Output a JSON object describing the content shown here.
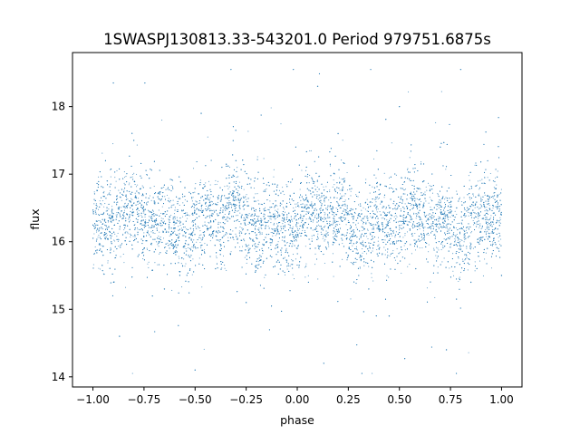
{
  "chart_data": {
    "type": "scatter",
    "title": "1SWASPJ130813.33-543201.0 Period 979751.6875s",
    "xlabel": "phase",
    "ylabel": "flux",
    "xlim": [
      -1.1,
      1.1
    ],
    "ylim": [
      13.85,
      18.8
    ],
    "x_ticks": [
      -1.0,
      -0.75,
      -0.5,
      -0.25,
      0.0,
      0.25,
      0.5,
      0.75,
      1.0
    ],
    "x_tick_labels": [
      "−1.00",
      "−0.75",
      "−0.50",
      "−0.25",
      "0.00",
      "0.25",
      "0.50",
      "0.75",
      "1.00"
    ],
    "y_ticks": [
      14,
      15,
      16,
      17,
      18
    ],
    "y_tick_labels": [
      "14",
      "15",
      "16",
      "17",
      "18"
    ],
    "grid": false,
    "legend": "none",
    "series": [
      {
        "color": "#1f77b4",
        "x_range": [
          -1.0,
          1.0
        ],
        "y_central": 16.3,
        "y_spread_core": [
          15.7,
          16.9
        ],
        "y_extreme": [
          14.05,
          18.55
        ],
        "points": [
          [
            -0.98,
            16.3
          ],
          [
            -0.95,
            15.8
          ],
          [
            -0.93,
            16.9
          ],
          [
            -0.9,
            18.35
          ],
          [
            -0.87,
            14.6
          ],
          [
            -0.82,
            16.4
          ],
          [
            -0.8,
            17.5
          ],
          [
            -0.75,
            15.9
          ],
          [
            -0.7,
            16.6
          ],
          [
            -0.65,
            15.3
          ],
          [
            -0.6,
            16.2
          ],
          [
            -0.55,
            16.8
          ],
          [
            -0.5,
            14.1
          ],
          [
            -0.47,
            17.9
          ],
          [
            -0.43,
            16.1
          ],
          [
            -0.4,
            15.6
          ],
          [
            -0.35,
            16.5
          ],
          [
            -0.3,
            17.2
          ],
          [
            -0.25,
            15.1
          ],
          [
            -0.2,
            16.3
          ],
          [
            -0.15,
            16.0
          ],
          [
            -0.1,
            15.7
          ],
          [
            -0.05,
            16.4
          ],
          [
            0.0,
            15.9
          ],
          [
            0.05,
            16.6
          ],
          [
            0.1,
            18.3
          ],
          [
            0.13,
            14.2
          ],
          [
            0.18,
            16.2
          ],
          [
            0.2,
            17.6
          ],
          [
            0.25,
            15.8
          ],
          [
            0.3,
            16.4
          ],
          [
            0.35,
            15.3
          ],
          [
            0.4,
            16.7
          ],
          [
            0.45,
            14.9
          ],
          [
            0.5,
            18.0
          ],
          [
            0.53,
            16.3
          ],
          [
            0.58,
            15.6
          ],
          [
            0.62,
            16.9
          ],
          [
            0.67,
            16.1
          ],
          [
            0.7,
            17.4
          ],
          [
            0.73,
            14.4
          ],
          [
            0.78,
            16.5
          ],
          [
            0.8,
            18.55
          ],
          [
            0.85,
            15.4
          ],
          [
            0.9,
            16.6
          ],
          [
            0.93,
            15.9
          ],
          [
            0.97,
            16.2
          ],
          [
            1.0,
            15.5
          ]
        ]
      }
    ]
  }
}
